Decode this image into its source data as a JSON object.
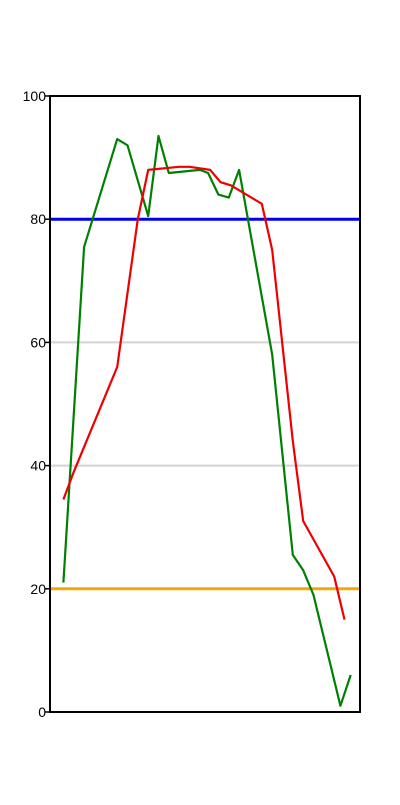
{
  "chart_data": {
    "type": "line",
    "title": "",
    "xlabel": "",
    "ylabel": "",
    "ylim": [
      0,
      100
    ],
    "y_ticks": [
      0,
      20,
      40,
      60,
      80,
      100
    ],
    "y_tick_labels": [
      "0",
      "20",
      "40",
      "60",
      "80",
      "100"
    ],
    "grid": "horizontal",
    "grid_lines_at": [
      40,
      60
    ],
    "x_ticks_visible": false,
    "legend": "none",
    "xlim": [
      0,
      30
    ],
    "reference_lines": [
      {
        "y": 80,
        "color": "#0000ee"
      },
      {
        "y": 20,
        "color": "#f5a700"
      }
    ],
    "series": [
      {
        "color": "#008000",
        "points": [
          [
            1.3,
            21
          ],
          [
            3.3,
            75.5
          ],
          [
            6.5,
            93
          ],
          [
            7.5,
            92
          ],
          [
            9.5,
            80.5
          ],
          [
            10.5,
            93.5
          ],
          [
            11.5,
            87.5
          ],
          [
            14.5,
            88
          ],
          [
            15.3,
            87.5
          ],
          [
            16.3,
            84
          ],
          [
            17.3,
            83.5
          ],
          [
            18.3,
            88
          ],
          [
            21.5,
            58
          ],
          [
            23.5,
            25.5
          ],
          [
            24.5,
            23
          ],
          [
            25.5,
            19
          ],
          [
            28.1,
            1
          ],
          [
            29.1,
            6
          ]
        ]
      },
      {
        "color": "#ee0000",
        "points": [
          [
            1.3,
            34.5
          ],
          [
            2.3,
            39
          ],
          [
            6.5,
            56
          ],
          [
            8.5,
            80
          ],
          [
            9.5,
            88
          ],
          [
            12.5,
            88.5
          ],
          [
            13.5,
            88.5
          ],
          [
            15.5,
            88
          ],
          [
            16.5,
            86
          ],
          [
            17.5,
            85.5
          ],
          [
            20.5,
            82.5
          ],
          [
            21.5,
            75
          ],
          [
            23.5,
            44
          ],
          [
            24.5,
            31
          ],
          [
            27.5,
            22
          ],
          [
            28.5,
            15
          ]
        ]
      }
    ],
    "colors": {
      "grid": "#d3d3d3",
      "axis": "#000000"
    }
  }
}
